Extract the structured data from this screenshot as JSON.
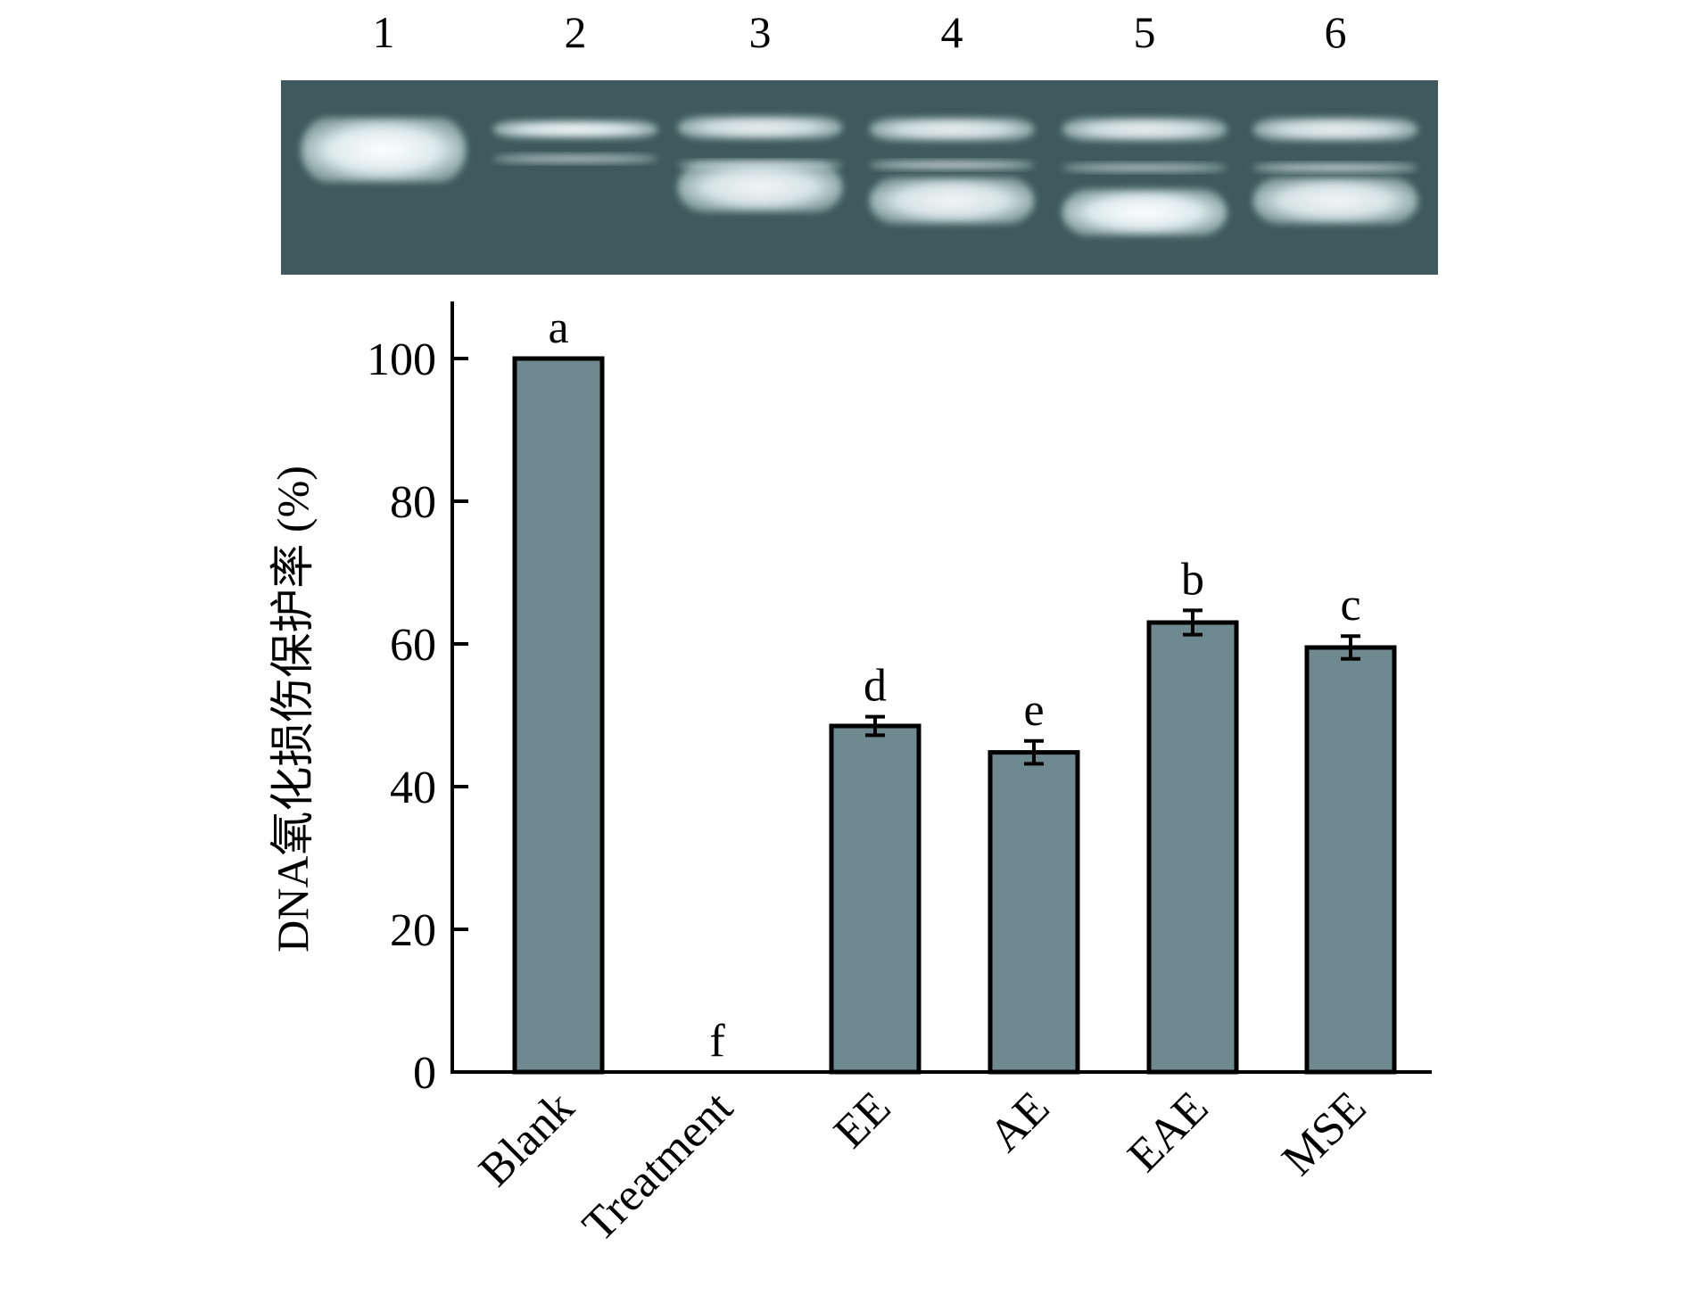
{
  "gel": {
    "lanes": [
      "1",
      "2",
      "3",
      "4",
      "5",
      "6"
    ],
    "background_color": "#3e5a5e",
    "band_color": "#e8f3f3"
  },
  "chart_data": {
    "type": "bar",
    "categories": [
      "Blank",
      "Treatment",
      "EE",
      "AE",
      "EAE",
      "MSE"
    ],
    "values": [
      100,
      0,
      48.5,
      44.8,
      63.0,
      59.5
    ],
    "errors": [
      0,
      0,
      1.3,
      1.6,
      1.7,
      1.6
    ],
    "significance": [
      "a",
      "f",
      "d",
      "e",
      "b",
      "c"
    ],
    "ylabel": "DNA氧化损伤保护率 (%)",
    "xlabel": "",
    "title": "",
    "ylim": [
      0,
      108
    ],
    "yticks": [
      0,
      20,
      40,
      60,
      80,
      100
    ],
    "bar_color": "#6e8990",
    "grid": false
  }
}
